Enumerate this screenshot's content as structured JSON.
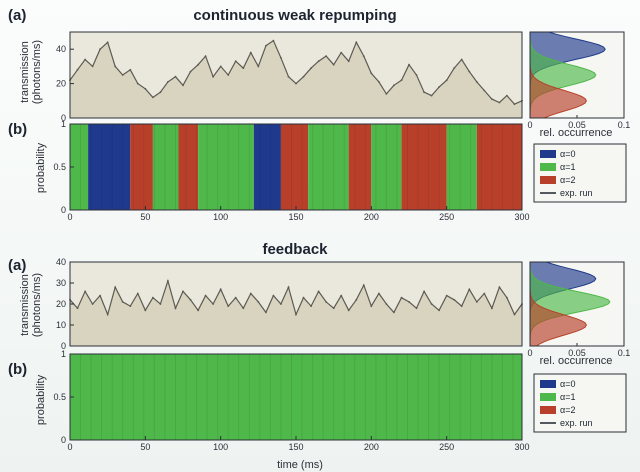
{
  "top": {
    "title": "continuous weak repumping",
    "label_a": "(a)",
    "label_b": "(b)"
  },
  "bottom": {
    "title": "feedback",
    "label_a": "(a)",
    "label_b": "(b)"
  },
  "axes": {
    "transmission_ylabel_1": "transmission",
    "transmission_ylabel_2": "(photons/ms)",
    "probability_ylabel": "probability",
    "occurrence_xlabel": "rel. occurrence",
    "time_xlabel": "time (ms)"
  },
  "legend": {
    "items": [
      {
        "label": "α=0",
        "color": "#1f3a8c"
      },
      {
        "label": "α=1",
        "color": "#4fb84a"
      },
      {
        "label": "α=2",
        "color": "#b8402a"
      },
      {
        "label": "exp. run",
        "color": "#1d2430"
      }
    ]
  },
  "chart_data": [
    {
      "type": "line",
      "id": "top-transmission",
      "title": "continuous weak repumping",
      "xlabel": "",
      "ylabel": "transmission (photons/ms)",
      "xlim": [
        0,
        300
      ],
      "ylim": [
        0,
        50
      ],
      "yticks": [
        0,
        20,
        40
      ],
      "x": [
        0,
        5,
        10,
        15,
        20,
        25,
        30,
        35,
        40,
        45,
        50,
        55,
        60,
        65,
        70,
        75,
        80,
        85,
        90,
        95,
        100,
        105,
        110,
        115,
        120,
        125,
        130,
        135,
        140,
        145,
        150,
        155,
        160,
        165,
        170,
        175,
        180,
        185,
        190,
        195,
        200,
        205,
        210,
        215,
        220,
        225,
        230,
        235,
        240,
        245,
        250,
        255,
        260,
        265,
        270,
        275,
        280,
        285,
        290,
        295,
        300
      ],
      "series": [
        {
          "values": [
            22,
            28,
            34,
            30,
            40,
            44,
            30,
            25,
            28,
            20,
            17,
            12,
            15,
            21,
            24,
            19,
            27,
            31,
            36,
            24,
            30,
            25,
            33,
            29,
            38,
            30,
            42,
            45,
            35,
            24,
            20,
            24,
            29,
            33,
            36,
            31,
            38,
            33,
            44,
            36,
            26,
            21,
            14,
            19,
            22,
            31,
            25,
            15,
            13,
            18,
            22,
            29,
            34,
            27,
            21,
            16,
            11,
            9,
            13,
            8,
            10
          ]
        }
      ]
    },
    {
      "type": "area",
      "id": "top-occurrence",
      "xlabel": "rel. occurrence",
      "xlim": [
        0,
        0.1
      ],
      "xticks": [
        0,
        0.05,
        0.1
      ],
      "series": [
        {
          "name": "α=0",
          "center": 40,
          "peak": 0.08
        },
        {
          "name": "α=1",
          "center": 25,
          "peak": 0.07
        },
        {
          "name": "α=2",
          "center": 10,
          "peak": 0.06
        }
      ]
    },
    {
      "type": "area",
      "id": "top-probability",
      "ylabel": "probability",
      "xlim": [
        0,
        300
      ],
      "ylim": [
        0,
        1
      ],
      "xticks": [
        0,
        50,
        100,
        150,
        200,
        250,
        300
      ],
      "yticks": [
        0,
        0.5,
        1
      ],
      "segments": [
        {
          "start": 0,
          "end": 12,
          "state": "α=1"
        },
        {
          "start": 12,
          "end": 40,
          "state": "α=0"
        },
        {
          "start": 40,
          "end": 55,
          "state": "α=2"
        },
        {
          "start": 55,
          "end": 72,
          "state": "α=1"
        },
        {
          "start": 72,
          "end": 85,
          "state": "α=2"
        },
        {
          "start": 85,
          "end": 122,
          "state": "α=1"
        },
        {
          "start": 122,
          "end": 140,
          "state": "α=0"
        },
        {
          "start": 140,
          "end": 158,
          "state": "α=2"
        },
        {
          "start": 158,
          "end": 185,
          "state": "α=1"
        },
        {
          "start": 185,
          "end": 200,
          "state": "α=2"
        },
        {
          "start": 200,
          "end": 220,
          "state": "α=1"
        },
        {
          "start": 220,
          "end": 250,
          "state": "α=2"
        },
        {
          "start": 250,
          "end": 270,
          "state": "α=1"
        },
        {
          "start": 270,
          "end": 300,
          "state": "α=2"
        }
      ]
    },
    {
      "type": "line",
      "id": "bottom-transmission",
      "title": "feedback",
      "ylabel": "transmission (photons/ms)",
      "xlim": [
        0,
        300
      ],
      "ylim": [
        0,
        40
      ],
      "yticks": [
        0,
        10,
        20,
        30,
        40
      ],
      "x": [
        0,
        5,
        10,
        15,
        20,
        25,
        30,
        35,
        40,
        45,
        50,
        55,
        60,
        65,
        70,
        75,
        80,
        85,
        90,
        95,
        100,
        105,
        110,
        115,
        120,
        125,
        130,
        135,
        140,
        145,
        150,
        155,
        160,
        165,
        170,
        175,
        180,
        185,
        190,
        195,
        200,
        205,
        210,
        215,
        220,
        225,
        230,
        235,
        240,
        245,
        250,
        255,
        260,
        265,
        270,
        275,
        280,
        285,
        290,
        295,
        300
      ],
      "series": [
        {
          "values": [
            22,
            18,
            26,
            20,
            24,
            15,
            28,
            21,
            19,
            25,
            17,
            23,
            20,
            31,
            18,
            26,
            22,
            17,
            24,
            20,
            27,
            19,
            23,
            18,
            25,
            21,
            16,
            24,
            20,
            28,
            15,
            23,
            19,
            26,
            21,
            18,
            24,
            17,
            22,
            29,
            19,
            25,
            20,
            16,
            23,
            21,
            18,
            26,
            20,
            17,
            24,
            22,
            19,
            27,
            21,
            25,
            18,
            28,
            23,
            15,
            20
          ]
        }
      ]
    },
    {
      "type": "area",
      "id": "bottom-occurrence",
      "xlabel": "rel. occurrence",
      "xlim": [
        0,
        0.1
      ],
      "xticks": [
        0,
        0.05,
        0.1
      ],
      "series": [
        {
          "name": "α=0",
          "center": 32,
          "peak": 0.07
        },
        {
          "name": "α=1",
          "center": 21,
          "peak": 0.085
        },
        {
          "name": "α=2",
          "center": 10,
          "peak": 0.06
        }
      ]
    },
    {
      "type": "area",
      "id": "bottom-probability",
      "ylabel": "probability",
      "xlim": [
        0,
        300
      ],
      "ylim": [
        0,
        1
      ],
      "xticks": [
        0,
        50,
        100,
        150,
        200,
        250,
        300
      ],
      "yticks": [
        0,
        0.5,
        1
      ],
      "segments": [
        {
          "start": 0,
          "end": 300,
          "state": "α=1"
        }
      ]
    }
  ]
}
